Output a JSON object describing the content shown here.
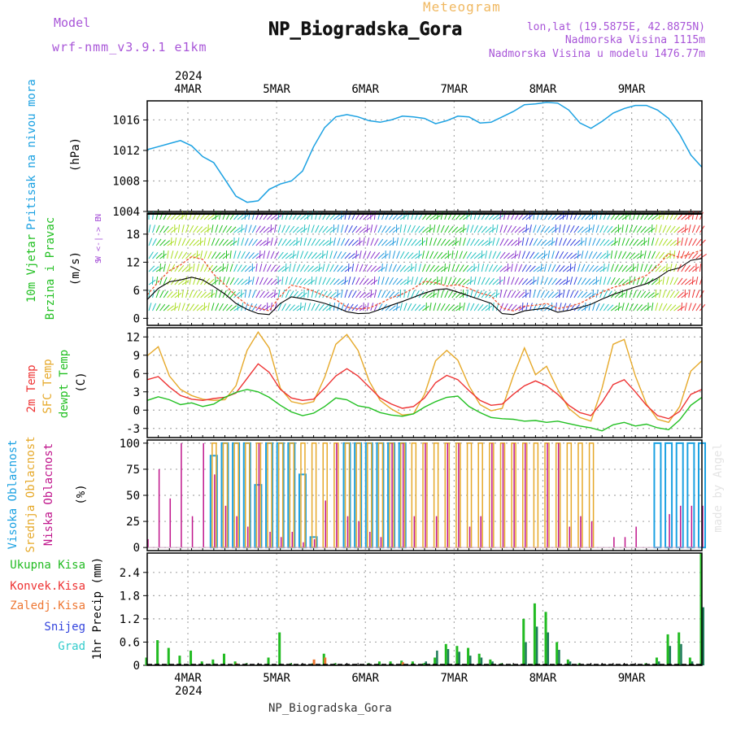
{
  "header": {
    "title": "NP_Biogradska_Gora",
    "subtitle": "Meteogram",
    "model_label": "Model",
    "model_name": "wrf-nmm_v3.9.1 e1km",
    "coords": "lon,lat (19.5875E, 42.8875N)",
    "elevation": "Nadmorska Visina 1115m",
    "model_elevation": "Nadmorska Visina u modelu 1476.77m",
    "credit": "made by Angel",
    "footer": "NP_Biogradska_Gora"
  },
  "time_axis": {
    "year": "2024",
    "days": [
      "4MAR",
      "5MAR",
      "6MAR",
      "7MAR",
      "8MAR",
      "9MAR"
    ]
  },
  "colors": {
    "pressure": "#1ba1e2",
    "temp2m": "#ee3333",
    "sfc_temp": "#e6a92a",
    "dewpoint": "#22c022",
    "high_cloud": "#1ba1e2",
    "mid_cloud": "#e6a92a",
    "low_cloud": "#c0168c",
    "total_precip": "#22bb22",
    "convective": "#ee3333",
    "freezing": "#ee7733",
    "snow": "#3344dd",
    "hail": "#33cccc",
    "label_purple": "#a855d8",
    "label_orange": "#f0b860"
  },
  "panels": {
    "pressure": {
      "title": "Pritisak na nivou mora",
      "unit": "(hPa)",
      "ticks": [
        "1004",
        "1008",
        "1012",
        "1016"
      ]
    },
    "wind": {
      "title1": "10m Vjetar",
      "title2": "Brzina i Pravac",
      "unit": "(m/s)",
      "ticks": [
        "0",
        "6",
        "12",
        "18"
      ],
      "legend": [
        "N",
        "W  <-|->  E",
        "S"
      ]
    },
    "temperature": {
      "title1": "2m Temp",
      "title2": "SFC Temp",
      "title3": "dewpt Temp",
      "unit": "(C)",
      "ticks": [
        "-3",
        "0",
        "3",
        "6",
        "9",
        "12"
      ]
    },
    "clouds": {
      "title1": "Visoka Oblacnost",
      "title2": "Srednja Oblacnost",
      "title3": "Niska Oblacnost",
      "unit": "(%)",
      "ticks": [
        "0",
        "25",
        "50",
        "75",
        "100"
      ]
    },
    "precip": {
      "labels": [
        "Ukupna Kisa",
        "Konvek.Kisa",
        "Zaledj.Kisa",
        "Snijeg",
        "Grad"
      ],
      "unit": "1hr Precip (mm)",
      "ticks": [
        "0",
        "0.6",
        "1.2",
        "1.8",
        "2.4"
      ]
    }
  },
  "chart_data": [
    {
      "type": "line",
      "title": "Pritisak na nivou mora",
      "ylabel": "(hPa)",
      "ylim": [
        1004,
        1018.5
      ],
      "x_unit": "hours from 2024-03-03 13:00",
      "x": [
        0,
        3,
        6,
        9,
        12,
        15,
        18,
        21,
        24,
        27,
        30,
        33,
        36,
        39,
        42,
        45,
        48,
        51,
        54,
        57,
        60,
        63,
        66,
        69,
        72,
        75,
        78,
        81,
        84,
        87,
        90,
        93,
        96,
        99,
        102,
        105,
        108,
        111,
        114,
        117,
        120,
        123,
        126,
        129,
        132,
        135,
        138,
        141,
        144,
        147,
        150
      ],
      "series": [
        {
          "name": "Pritisak na nivou mora",
          "values": [
            1012.1,
            1012.5,
            1012.9,
            1013.3,
            1012.6,
            1011.2,
            1010.4,
            1008.2,
            1006.0,
            1005.2,
            1005.4,
            1006.9,
            1007.6,
            1008.0,
            1009.3,
            1012.5,
            1015.0,
            1016.4,
            1016.7,
            1016.4,
            1015.9,
            1015.7,
            1016.0,
            1016.5,
            1016.4,
            1016.2,
            1015.5,
            1015.9,
            1016.5,
            1016.4,
            1015.6,
            1015.7,
            1016.4,
            1017.1,
            1018.0,
            1018.1,
            1018.3,
            1018.2,
            1017.3,
            1015.6,
            1014.9,
            1015.8,
            1016.9,
            1017.5,
            1017.9,
            1017.9,
            1017.3,
            1016.2,
            1014.1,
            1011.4,
            1009.8
          ]
        }
      ]
    },
    {
      "type": "line",
      "title": "10m Vjetar Brzina i Pravac",
      "ylabel": "(m/s)",
      "ylim": [
        -1.5,
        22.5
      ],
      "x_unit": "hours from 2024-03-03 13:00",
      "x": [
        0,
        3,
        6,
        9,
        12,
        15,
        18,
        21,
        24,
        27,
        30,
        33,
        36,
        39,
        42,
        45,
        48,
        51,
        54,
        57,
        60,
        63,
        66,
        69,
        72,
        75,
        78,
        81,
        84,
        87,
        90,
        93,
        96,
        99,
        102,
        105,
        108,
        111,
        114,
        117,
        120,
        123,
        126,
        129,
        132,
        135,
        138,
        141,
        144,
        147,
        150
      ],
      "series": [
        {
          "name": "gust",
          "values": [
            5.0,
            7.8,
            10.2,
            11.4,
            13.2,
            12.6,
            9.4,
            7.2,
            4.8,
            2.9,
            2.2,
            1.6,
            4.8,
            7.1,
            6.6,
            5.8,
            4.8,
            4.0,
            2.4,
            2.0,
            2.2,
            3.2,
            4.4,
            5.2,
            6.4,
            7.9,
            7.6,
            6.9,
            7.2,
            6.4,
            5.4,
            4.8,
            2.2,
            1.6,
            2.6,
            2.8,
            3.2,
            2.1,
            2.5,
            3.2,
            4.4,
            5.6,
            6.6,
            7.2,
            8.2,
            9.2,
            11.2,
            13.8,
            13.0,
            13.8,
            14.6
          ]
        },
        {
          "name": "mean",
          "values": [
            4.0,
            6.4,
            7.8,
            8.2,
            8.8,
            8.2,
            6.8,
            5.2,
            3.2,
            1.9,
            1.0,
            0.8,
            3.2,
            4.6,
            4.2,
            3.8,
            3.2,
            2.4,
            1.4,
            1.0,
            1.1,
            1.9,
            2.8,
            3.6,
            4.5,
            5.4,
            6.1,
            6.3,
            5.6,
            4.8,
            4.0,
            3.2,
            1.0,
            0.8,
            1.6,
            1.9,
            2.2,
            1.3,
            1.7,
            2.3,
            3.0,
            4.1,
            5.1,
            5.9,
            6.7,
            7.4,
            8.6,
            10.2,
            10.8,
            12.4,
            12.8
          ]
        }
      ]
    },
    {
      "type": "line",
      "title": "2m Temp / SFC Temp / dewpt Temp",
      "ylabel": "(C)",
      "ylim": [
        -4.5,
        13.5
      ],
      "x_unit": "hours from 2024-03-03 13:00",
      "x": [
        0,
        3,
        6,
        9,
        12,
        15,
        18,
        21,
        24,
        27,
        30,
        33,
        36,
        39,
        42,
        45,
        48,
        51,
        54,
        57,
        60,
        63,
        66,
        69,
        72,
        75,
        78,
        81,
        84,
        87,
        90,
        93,
        96,
        99,
        102,
        105,
        108,
        111,
        114,
        117,
        120,
        123,
        126,
        129,
        132,
        135,
        138,
        141,
        144,
        147,
        150
      ],
      "series": [
        {
          "name": "2m Temp",
          "values": [
            5.0,
            5.5,
            3.8,
            2.4,
            1.8,
            1.6,
            1.9,
            2.1,
            2.8,
            5.2,
            7.6,
            6.2,
            3.4,
            2.0,
            1.6,
            1.8,
            3.6,
            5.6,
            6.8,
            5.6,
            3.8,
            2.0,
            1.0,
            0.3,
            0.6,
            2.0,
            4.5,
            5.7,
            5.0,
            3.2,
            1.6,
            0.8,
            1.0,
            2.6,
            4.0,
            4.8,
            4.0,
            2.6,
            0.8,
            -0.4,
            -0.9,
            1.3,
            4.2,
            5.0,
            3.0,
            0.8,
            -0.9,
            -1.4,
            -0.2,
            2.6,
            3.4
          ]
        },
        {
          "name": "SFC Temp",
          "values": [
            8.9,
            10.4,
            5.6,
            3.4,
            2.4,
            1.8,
            1.6,
            1.7,
            4.0,
            9.8,
            12.8,
            10.2,
            3.6,
            1.4,
            1.0,
            1.4,
            5.4,
            10.8,
            12.4,
            9.8,
            4.8,
            1.6,
            0.2,
            -0.8,
            -0.6,
            2.6,
            8.1,
            9.8,
            8.2,
            4.0,
            0.9,
            -0.1,
            0.3,
            5.6,
            10.2,
            5.8,
            7.2,
            3.4,
            0.3,
            -1.2,
            -1.8,
            3.6,
            10.8,
            11.6,
            5.6,
            1.0,
            -1.5,
            -2.0,
            0.6,
            6.4,
            8.1
          ]
        },
        {
          "name": "dewpt Temp",
          "values": [
            1.6,
            2.2,
            1.7,
            0.9,
            1.2,
            0.6,
            1.0,
            2.1,
            2.9,
            3.4,
            3.0,
            2.1,
            0.8,
            -0.3,
            -0.9,
            -0.5,
            0.6,
            2.0,
            1.7,
            0.7,
            0.4,
            -0.4,
            -0.8,
            -1.0,
            -0.6,
            0.5,
            1.4,
            2.1,
            2.3,
            0.6,
            -0.4,
            -1.2,
            -1.4,
            -1.5,
            -1.8,
            -1.7,
            -2.0,
            -1.8,
            -2.2,
            -2.6,
            -2.9,
            -3.4,
            -2.4,
            -2.0,
            -2.6,
            -2.3,
            -2.9,
            -3.2,
            -1.6,
            0.8,
            2.1
          ]
        }
      ]
    },
    {
      "type": "bar",
      "title": "Visoka / Srednja / Niska Oblacnost",
      "ylabel": "(%)",
      "ylim": [
        -3,
        103
      ],
      "x_unit": "hours from 2024-03-03 13:00",
      "x": [
        0,
        3,
        6,
        9,
        12,
        15,
        18,
        21,
        24,
        27,
        30,
        33,
        36,
        39,
        42,
        45,
        48,
        51,
        54,
        57,
        60,
        63,
        66,
        69,
        72,
        75,
        78,
        81,
        84,
        87,
        90,
        93,
        96,
        99,
        102,
        105,
        108,
        111,
        114,
        117,
        120,
        123,
        126,
        129,
        132,
        135,
        138,
        141,
        144,
        147,
        150
      ],
      "series": [
        {
          "name": "Visoka Oblacnost",
          "values": [
            0,
            0,
            0,
            0,
            0,
            0,
            88,
            100,
            100,
            100,
            60,
            100,
            100,
            100,
            70,
            10,
            0,
            0,
            100,
            100,
            100,
            100,
            100,
            100,
            0,
            0,
            0,
            0,
            0,
            0,
            0,
            0,
            0,
            0,
            0,
            0,
            0,
            0,
            0,
            0,
            0,
            0,
            0,
            0,
            0,
            0,
            100,
            100,
            100,
            100,
            100
          ]
        },
        {
          "name": "Srednja Oblacnost",
          "values": [
            0,
            0,
            0,
            0,
            0,
            0,
            100,
            100,
            100,
            100,
            100,
            100,
            100,
            100,
            100,
            100,
            100,
            100,
            100,
            100,
            100,
            100,
            100,
            100,
            100,
            100,
            100,
            100,
            100,
            100,
            100,
            100,
            100,
            100,
            100,
            100,
            100,
            100,
            100,
            100,
            100,
            0,
            0,
            0,
            0,
            0,
            0,
            0,
            0,
            0,
            0
          ]
        },
        {
          "name": "Niska Oblacnost",
          "values": [
            8,
            75,
            47,
            100,
            30,
            100,
            70,
            40,
            30,
            20,
            100,
            15,
            10,
            15,
            5,
            8,
            45,
            100,
            30,
            25,
            15,
            10,
            100,
            100,
            30,
            100,
            30,
            100,
            100,
            20,
            30,
            100,
            100,
            100,
            100,
            0,
            100,
            100,
            20,
            30,
            25,
            0,
            10,
            10,
            20,
            0,
            0,
            32,
            40,
            40,
            40
          ]
        }
      ]
    },
    {
      "type": "bar",
      "title": "1hr Precip",
      "ylabel": "1hr Precip (mm)",
      "ylim": [
        0,
        2.9
      ],
      "x_unit": "hours from 2024-03-03 13:00",
      "x": [
        0,
        3,
        6,
        9,
        12,
        15,
        18,
        21,
        24,
        27,
        30,
        33,
        36,
        39,
        42,
        45,
        48,
        51,
        54,
        57,
        60,
        63,
        66,
        69,
        72,
        75,
        78,
        81,
        84,
        87,
        90,
        93,
        96,
        99,
        102,
        105,
        108,
        111,
        114,
        117,
        120,
        123,
        126,
        129,
        132,
        135,
        138,
        141,
        144,
        147,
        150
      ],
      "series": [
        {
          "name": "Ukupna Kisa",
          "values": [
            0.2,
            0.65,
            0.45,
            0.25,
            0.38,
            0.1,
            0.15,
            0.3,
            0.1,
            0.05,
            0.02,
            0.2,
            0.85,
            0.05,
            0.0,
            0.05,
            0.3,
            0.05,
            0.0,
            0.0,
            0.05,
            0.1,
            0.1,
            0.12,
            0.1,
            0.05,
            0.2,
            0.55,
            0.5,
            0.45,
            0.3,
            0.15,
            0.05,
            0.02,
            1.2,
            1.6,
            1.38,
            0.6,
            0.15,
            0.05,
            0.02,
            0.0,
            0.0,
            0.0,
            0.0,
            0.05,
            0.2,
            0.8,
            0.85,
            0.2,
            2.9
          ]
        },
        {
          "name": "Konvek.Kisa",
          "values": [
            0,
            0,
            0,
            0,
            0,
            0,
            0,
            0,
            0,
            0,
            0,
            0,
            0,
            0,
            0,
            0,
            0,
            0,
            0,
            0,
            0,
            0,
            0,
            0,
            0,
            0,
            0,
            0,
            0,
            0,
            0,
            0,
            0,
            0,
            0,
            0,
            0,
            0,
            0,
            0,
            0,
            0,
            0,
            0,
            0,
            0,
            0,
            0,
            0,
            0,
            0
          ]
        },
        {
          "name": "Zaledj.Kisa",
          "values": [
            0,
            0,
            0,
            0,
            0,
            0,
            0,
            0,
            0.05,
            0,
            0,
            0,
            0,
            0,
            0,
            0.15,
            0.2,
            0,
            0,
            0,
            0,
            0,
            0,
            0.08,
            0,
            0,
            0,
            0,
            0,
            0,
            0,
            0,
            0,
            0,
            0,
            0,
            0,
            0,
            0,
            0,
            0,
            0,
            0,
            0,
            0,
            0,
            0,
            0,
            0,
            0,
            0
          ]
        },
        {
          "name": "Snijeg",
          "values": [
            0,
            0,
            0,
            0,
            0,
            0,
            0,
            0,
            0,
            0,
            0,
            0,
            0,
            0,
            0,
            0,
            0,
            0,
            0,
            0,
            0,
            0,
            0,
            0,
            0,
            0.1,
            0.38,
            0.42,
            0.35,
            0.25,
            0.2,
            0.1,
            0,
            0,
            0.6,
            1.0,
            0.85,
            0.4,
            0.1,
            0,
            0,
            0,
            0,
            0,
            0,
            0,
            0.1,
            0.5,
            0.55,
            0.1,
            1.5
          ]
        },
        {
          "name": "Grad",
          "values": [
            0,
            0,
            0,
            0,
            0,
            0,
            0,
            0,
            0,
            0,
            0,
            0,
            0,
            0,
            0,
            0,
            0,
            0,
            0,
            0,
            0,
            0,
            0,
            0,
            0,
            0,
            0,
            0,
            0,
            0,
            0,
            0,
            0,
            0,
            0,
            0,
            0,
            0,
            0,
            0,
            0,
            0,
            0,
            0,
            0,
            0,
            0,
            0,
            0,
            0,
            0
          ]
        }
      ]
    }
  ]
}
